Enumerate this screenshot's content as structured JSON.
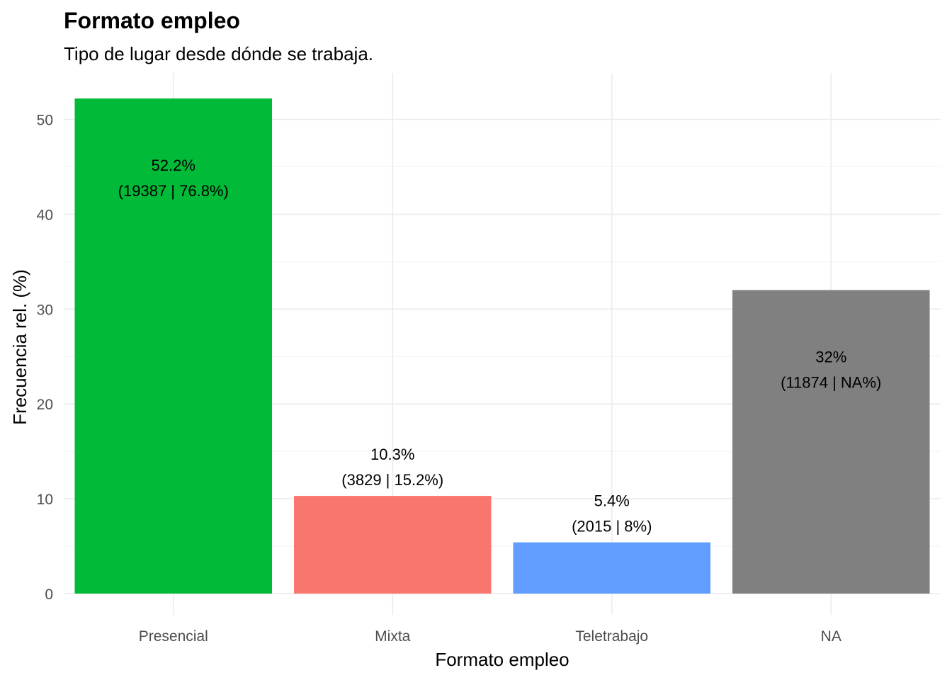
{
  "chart_data": {
    "type": "bar",
    "title": "Formato empleo",
    "subtitle": "Tipo de lugar desde dónde se trabaja.",
    "xlabel": "Formato empleo",
    "ylabel": "Frecuencia rel. (%)",
    "ylim": [
      0,
      53
    ],
    "yticks": [
      0,
      10,
      20,
      30,
      40,
      50
    ],
    "grid": true,
    "categories": [
      "Presencial",
      "Mixta",
      "Teletrabajo",
      "NA"
    ],
    "values": [
      52.2,
      10.3,
      5.4,
      32
    ],
    "colors": [
      "#00BA38",
      "#F8766D",
      "#619CFF",
      "#808080"
    ],
    "labels": [
      [
        "52.2%",
        "(19387 | 76.8%)"
      ],
      [
        "10.3%",
        "(3829 | 15.2%)"
      ],
      [
        "5.4%",
        "(2015 | 8%)"
      ],
      [
        "32%",
        "(11874 | NA%)"
      ]
    ],
    "label_position": [
      "inside",
      "above",
      "above",
      "inside"
    ]
  }
}
